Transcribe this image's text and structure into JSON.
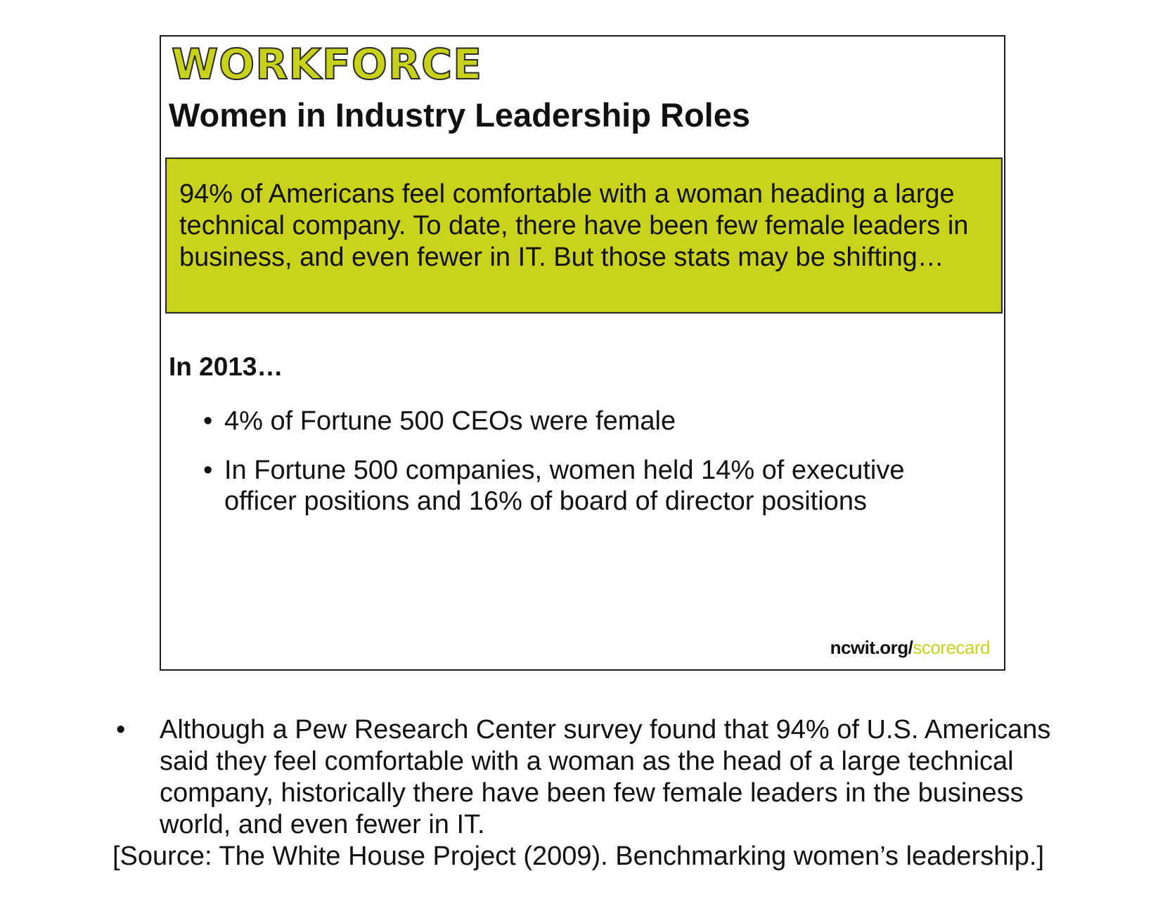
{
  "slide": {
    "section_label": "WORKFORCE",
    "title": "Women in Industry Leadership Roles",
    "callout": "94% of Americans feel comfortable with a woman heading a large technical company. To date, there have been few female leaders in business, and even fewer in IT. But those stats may be shifting…",
    "year_heading": "In 2013…",
    "bullet_marker": "•",
    "bullets": [
      "4% of Fortune 500 CEOs were female",
      "In Fortune 500 companies, women held 14% of executive officer positions and 16% of board of director positions"
    ],
    "footer": {
      "domain": "ncwit.org/",
      "path": "scorecard"
    },
    "colors": {
      "accent": "#c9d31c",
      "border": "#1a1a1a"
    }
  },
  "note": {
    "bullet_marker": "•",
    "text": "Although a Pew Research Center survey found that 94% of U.S. Americans said they feel comfortable with a woman as the head of a large technical company, historically there have been few female leaders in the business world, and even fewer in IT.",
    "source": "[Source: The White House Project (2009). Benchmarking women’s leadership.]"
  }
}
